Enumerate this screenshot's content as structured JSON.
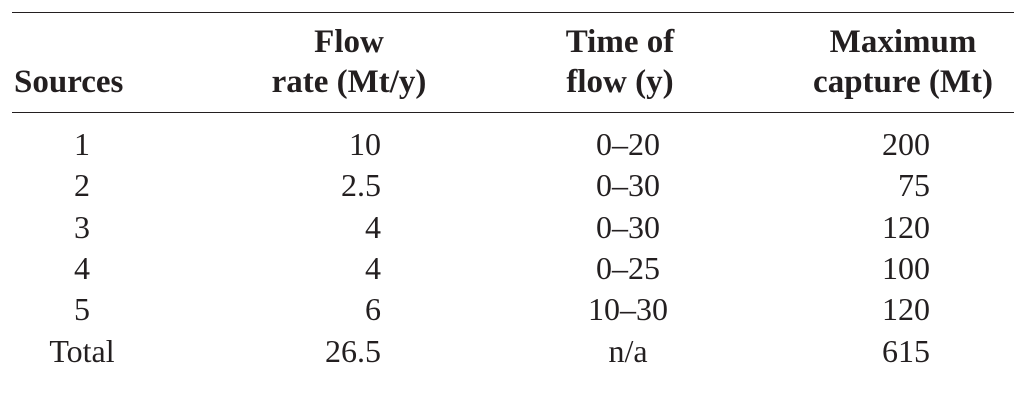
{
  "table": {
    "header": [
      [
        "Sources"
      ],
      [
        "Flow",
        "rate (Mt/y)"
      ],
      [
        "Time of",
        "flow (y)"
      ],
      [
        "Maximum",
        "capture (Mt)"
      ]
    ],
    "rows": [
      [
        "1",
        "10",
        "0–20",
        "200"
      ],
      [
        "2",
        "2.5",
        "0–30",
        "75"
      ],
      [
        "3",
        "4",
        "0–30",
        "120"
      ],
      [
        "4",
        "4",
        "0–25",
        "100"
      ],
      [
        "5",
        "6",
        "10–30",
        "120"
      ],
      [
        "Total",
        "26.5",
        "n/a",
        "615"
      ]
    ]
  }
}
